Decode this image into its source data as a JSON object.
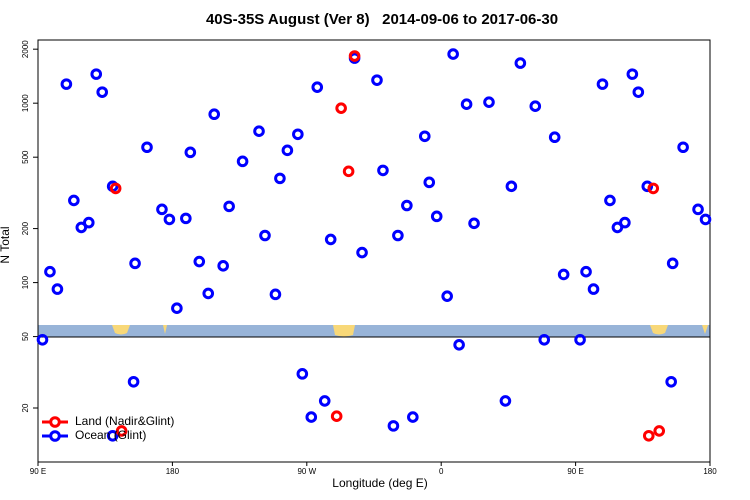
{
  "chart_data": {
    "type": "scatter",
    "title": "40S-35S August (Ver 8)   2014-09-06 to 2017-06-30",
    "x_label": "Longitude (deg E)",
    "y_label": "N Total",
    "xlim": [
      90,
      540
    ],
    "xticks": [
      {
        "value": 90,
        "label": "90 E"
      },
      180,
      {
        "value": 270,
        "label": "90 W"
      },
      {
        "value": 360,
        "label": "0"
      },
      {
        "value": 450,
        "label": "90 E"
      },
      {
        "value": 540,
        "label": "180"
      }
    ],
    "ylim": [
      10,
      2250
    ],
    "y_log": true,
    "yticks": [
      20,
      50,
      100,
      200,
      500,
      1000,
      2000
    ],
    "legend": "bottom-left",
    "series": [
      {
        "name": "Land (Nadir&Glint)",
        "color": "#ff0000",
        "x": [
          142,
          302,
          293,
          298,
          290,
          146,
          502,
          499,
          506
        ],
        "values": [
          335,
          1832,
          938,
          417,
          18,
          14.9,
          335,
          14,
          14.9
        ]
      },
      {
        "name": "Ocean (Glint)",
        "color": "#0000ff",
        "x": [
          98,
          103,
          109,
          114,
          119,
          124,
          129,
          133,
          140,
          155,
          163,
          173,
          178,
          183,
          189,
          192,
          198,
          204,
          208,
          214,
          218,
          227,
          238,
          242,
          249,
          252,
          257,
          264,
          277,
          286,
          302,
          307,
          317,
          321,
          331,
          337,
          349,
          352,
          357,
          364,
          368,
          377,
          382,
          392,
          407,
          413,
          423,
          436,
          442,
          457,
          462,
          468,
          473,
          478,
          483,
          488,
          492,
          498,
          515,
          522,
          532,
          537,
          93,
          154,
          267,
          273,
          282,
          328,
          341,
          372,
          403,
          429,
          453,
          514,
          140
        ],
        "values": [
          115,
          92,
          1277,
          287,
          203,
          216,
          1452,
          1152,
          344,
          128,
          568,
          256,
          225,
          72,
          228,
          532,
          131,
          87,
          868,
          124,
          266,
          474,
          698,
          183,
          86,
          381,
          546,
          671,
          1228,
          174,
          1783,
          147,
          1344,
          422,
          183,
          269,
          654,
          362,
          234,
          84,
          1878,
          987,
          214,
          1013,
          344,
          1673,
          962,
          646,
          111,
          115,
          92,
          1277,
          287,
          203,
          216,
          1452,
          1152,
          344,
          128,
          568,
          256,
          225,
          48,
          28,
          31,
          17.8,
          21.9,
          15.9,
          17.8,
          45,
          21.9,
          48,
          48,
          28,
          14
        ]
      }
    ]
  }
}
